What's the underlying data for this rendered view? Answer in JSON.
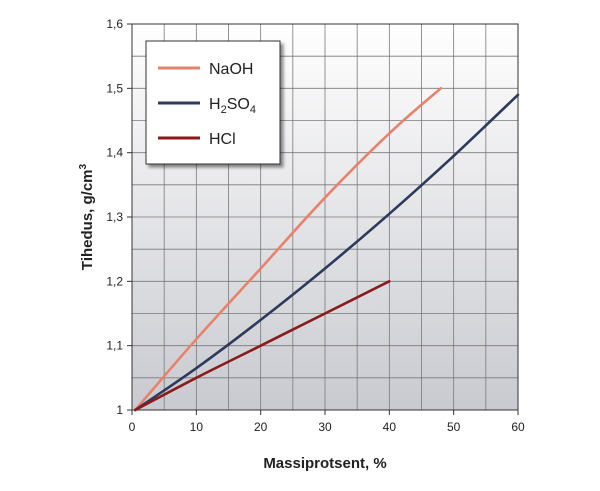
{
  "chart_data": {
    "type": "line",
    "xlabel": "Massiprotsent, %",
    "ylabel": "Tihedus, g/cm",
    "ylabel_sup": "3",
    "xlim": [
      0,
      60
    ],
    "ylim": [
      1.0,
      1.6
    ],
    "x_ticks": [
      0,
      10,
      20,
      30,
      40,
      50,
      60
    ],
    "y_ticks": [
      1,
      1.1,
      1.2,
      1.3,
      1.4,
      1.5,
      1.6
    ],
    "x_tick_labels": [
      "0",
      "10",
      "20",
      "30",
      "40",
      "50",
      "60"
    ],
    "y_tick_labels": [
      "1",
      "1,1",
      "1,2",
      "1,3",
      "1,4",
      "1,5",
      "1,6"
    ],
    "grid": true,
    "legend_position": "top-left",
    "series": [
      {
        "name": "NaOH",
        "color": "#e8826a",
        "x": [
          0.5,
          10,
          20,
          30,
          40,
          48
        ],
        "y": [
          1.0,
          1.11,
          1.22,
          1.33,
          1.43,
          1.5
        ]
      },
      {
        "name": "H2SO4",
        "label_parts": [
          "H",
          "2",
          "SO",
          "4"
        ],
        "color": "#2e3a5c",
        "x": [
          0.5,
          10,
          20,
          30,
          40,
          50,
          60
        ],
        "y": [
          1.0,
          1.065,
          1.14,
          1.22,
          1.305,
          1.395,
          1.49
        ]
      },
      {
        "name": "HCl",
        "color": "#8b1a1a",
        "x": [
          0.5,
          10,
          20,
          30,
          40
        ],
        "y": [
          1.0,
          1.05,
          1.1,
          1.15,
          1.2
        ]
      }
    ]
  }
}
